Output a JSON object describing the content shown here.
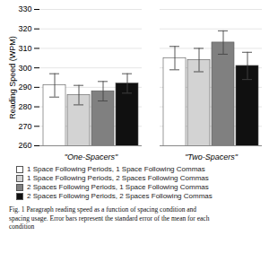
{
  "chart_data": {
    "type": "bar",
    "categories": [
      "\"One-Spacers\"",
      "\"Two-Spacers\""
    ],
    "series": [
      {
        "name": "1 Space Following Periods, 1 Space Following Commas",
        "color": "#ffffff",
        "values": [
          291,
          305
        ],
        "errors": [
          6,
          6
        ]
      },
      {
        "name": "1 Space Following Periods, 2 Spaces Following Commas",
        "color": "#d3d3d3",
        "values": [
          286,
          304
        ],
        "errors": [
          5,
          6
        ]
      },
      {
        "name": "2 Spaces Following Periods, 1 Space Following Commas",
        "color": "#808080",
        "values": [
          288,
          313
        ],
        "errors": [
          5,
          6
        ]
      },
      {
        "name": "2 Spaces Following Periods, 2 Spaces Following Commas",
        "color": "#101010",
        "values": [
          292,
          301
        ],
        "errors": [
          5,
          7
        ]
      }
    ],
    "ylabel": "Reading Speed (WPM)",
    "ylim": [
      260,
      330
    ],
    "yticks": [
      260,
      270,
      280,
      290,
      300,
      310,
      320,
      330
    ],
    "grid": true,
    "legend": "bottom",
    "caption": "Fig. 1  Paragraph reading speed as a function of spacing condition and\nspacing usage. Error bars represent the standard error of the mean for each\ncondition"
  }
}
